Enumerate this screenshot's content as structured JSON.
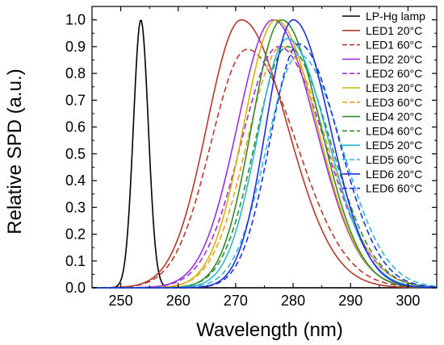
{
  "chart_data": {
    "type": "line",
    "xlabel": "Wavelength (nm)",
    "ylabel": "Relative SPD (a.u.)",
    "xlim": [
      245,
      305
    ],
    "ylim": [
      0,
      1.05
    ],
    "x_ticks": [
      250,
      260,
      270,
      280,
      290,
      300
    ],
    "y_ticks": [
      0.0,
      0.1,
      0.2,
      0.3,
      0.4,
      0.5,
      0.6,
      0.7,
      0.8,
      0.9,
      1.0
    ],
    "x_tick_labels": [
      "250",
      "260",
      "270",
      "280",
      "290",
      "300"
    ],
    "y_tick_labels": [
      "0.0",
      "0.1",
      "0.2",
      "0.3",
      "0.4",
      "0.5",
      "0.6",
      "0.7",
      "0.8",
      "0.9",
      "1.0"
    ],
    "legend_position": "top-right",
    "series": [
      {
        "name": "LP-Hg lamp",
        "color": "#000000",
        "dash": false,
        "peak": 253.5,
        "amplitude": 1.0,
        "width_left": 1.3,
        "width_right": 1.3
      },
      {
        "name": "LED1 20°C",
        "color": "#b03a2e",
        "dash": false,
        "peak": 271.0,
        "amplitude": 1.0,
        "width_left": 6.0,
        "width_right": 8.0
      },
      {
        "name": "LED1 60°C",
        "color": "#b03a2e",
        "dash": true,
        "peak": 272.0,
        "amplitude": 0.89,
        "width_left": 6.3,
        "width_right": 8.6
      },
      {
        "name": "LED2 20°C",
        "color": "#9b30d9",
        "dash": false,
        "peak": 276.5,
        "amplitude": 1.0,
        "width_left": 6.2,
        "width_right": 7.4
      },
      {
        "name": "LED2 60°C",
        "color": "#9b30d9",
        "dash": true,
        "peak": 277.5,
        "amplitude": 0.9,
        "width_left": 6.5,
        "width_right": 8.0
      },
      {
        "name": "LED3 20°C",
        "color": "#d4b400",
        "dash": false,
        "peak": 277.0,
        "amplitude": 1.0,
        "width_left": 5.6,
        "width_right": 7.2
      },
      {
        "name": "LED3 60°C",
        "color": "#e8a020",
        "dash": true,
        "peak": 278.0,
        "amplitude": 0.9,
        "width_left": 6.0,
        "width_right": 7.8
      },
      {
        "name": "LED4 20°C",
        "color": "#2e8b2e",
        "dash": false,
        "peak": 278.0,
        "amplitude": 1.0,
        "width_left": 5.2,
        "width_right": 6.8
      },
      {
        "name": "LED4 60°C",
        "color": "#2e8b2e",
        "dash": true,
        "peak": 279.0,
        "amplitude": 0.9,
        "width_left": 5.6,
        "width_right": 7.5
      },
      {
        "name": "LED5 20°C",
        "color": "#2bb5d6",
        "dash": false,
        "peak": 279.0,
        "amplitude": 0.93,
        "width_left": 5.2,
        "width_right": 7.0
      },
      {
        "name": "LED5 60°C",
        "color": "#2bb5d6",
        "dash": true,
        "peak": 281.0,
        "amplitude": 0.87,
        "width_left": 5.6,
        "width_right": 7.5
      },
      {
        "name": "LED6 20°C",
        "color": "#1f2fd1",
        "dash": false,
        "peak": 280.0,
        "amplitude": 1.0,
        "width_left": 4.7,
        "width_right": 6.4
      },
      {
        "name": "LED6 60°C",
        "color": "#1f2fd1",
        "dash": true,
        "peak": 281.0,
        "amplitude": 0.91,
        "width_left": 5.0,
        "width_right": 7.0
      }
    ]
  }
}
